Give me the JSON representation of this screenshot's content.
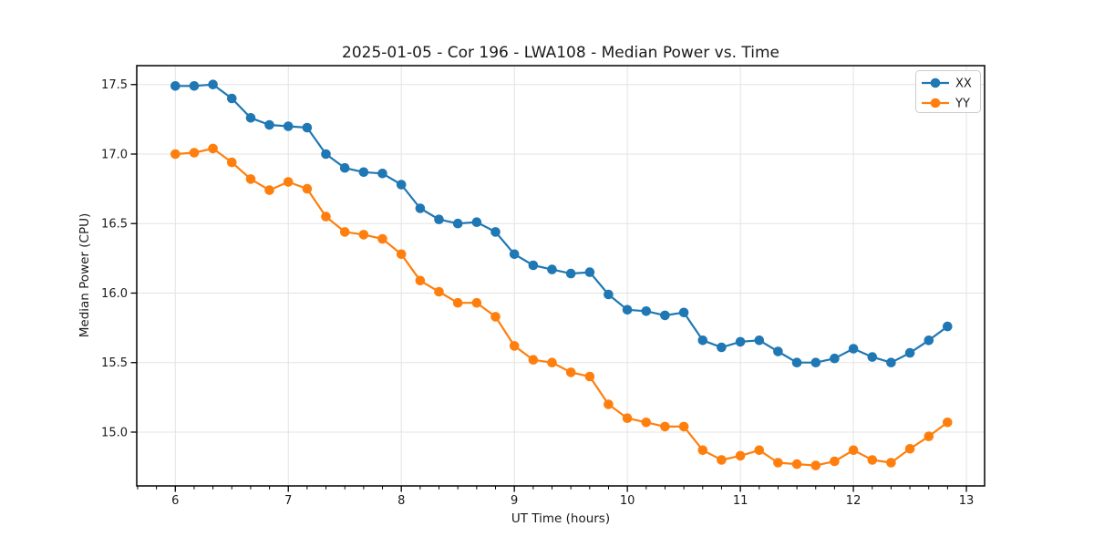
{
  "figure": {
    "title": "2025-01-05 - Cor 196 - LWA108 - Median Power vs. Time",
    "xlabel": "UT Time (hours)",
    "ylabel": "Median Power (CPU)"
  },
  "legend": {
    "items": [
      {
        "label": "XX",
        "color": "#1f77b4"
      },
      {
        "label": "YY",
        "color": "#ff7f0e"
      }
    ]
  },
  "colors": {
    "background": "#ffffff",
    "grid": "#e3e3e3",
    "axis": "#000000",
    "text": "#1a1a1a",
    "series_xx": "#1f77b4",
    "series_yy": "#ff7f0e"
  },
  "chart_data": {
    "type": "line",
    "title": "2025-01-05 - Cor 196 - LWA108 - Median Power vs. Time",
    "xlabel": "UT Time (hours)",
    "ylabel": "Median Power (CPU)",
    "grid": true,
    "legend_position": "upper right",
    "marker": "o",
    "xlim": [
      5.659,
      13.161
    ],
    "ylim": [
      14.613,
      17.636
    ],
    "xticks": [
      6,
      7,
      8,
      9,
      10,
      11,
      12,
      13
    ],
    "yticks": [
      15.0,
      15.5,
      16.0,
      16.5,
      17.0,
      17.5
    ],
    "minor_xtick_step": 0.166667,
    "x": [
      6.0,
      6.167,
      6.333,
      6.5,
      6.667,
      6.833,
      7.0,
      7.167,
      7.333,
      7.5,
      7.667,
      7.833,
      8.0,
      8.167,
      8.333,
      8.5,
      8.667,
      8.833,
      9.0,
      9.167,
      9.333,
      9.5,
      9.667,
      9.833,
      10.0,
      10.167,
      10.333,
      10.5,
      10.667,
      10.833,
      11.0,
      11.167,
      11.333,
      11.5,
      11.667,
      11.833,
      12.0,
      12.167,
      12.333,
      12.5,
      12.667,
      12.833
    ],
    "series": [
      {
        "name": "XX",
        "color": "#1f77b4",
        "values": [
          17.49,
          17.49,
          17.5,
          17.4,
          17.26,
          17.21,
          17.2,
          17.19,
          17.0,
          16.9,
          16.87,
          16.86,
          16.78,
          16.61,
          16.53,
          16.5,
          16.51,
          16.44,
          16.28,
          16.2,
          16.17,
          16.14,
          16.15,
          15.99,
          15.88,
          15.87,
          15.84,
          15.86,
          15.66,
          15.61,
          15.65,
          15.66,
          15.58,
          15.5,
          15.5,
          15.53,
          15.6,
          15.54,
          15.5,
          15.57,
          15.66,
          15.76
        ]
      },
      {
        "name": "YY",
        "color": "#ff7f0e",
        "values": [
          17.0,
          17.01,
          17.04,
          16.94,
          16.82,
          16.74,
          16.8,
          16.75,
          16.55,
          16.44,
          16.42,
          16.39,
          16.28,
          16.09,
          16.01,
          15.93,
          15.93,
          15.83,
          15.62,
          15.52,
          15.5,
          15.43,
          15.4,
          15.2,
          15.1,
          15.07,
          15.04,
          15.04,
          14.87,
          14.8,
          14.83,
          14.87,
          14.78,
          14.77,
          14.76,
          14.79,
          14.87,
          14.8,
          14.78,
          14.88,
          14.97,
          15.07
        ]
      }
    ]
  }
}
